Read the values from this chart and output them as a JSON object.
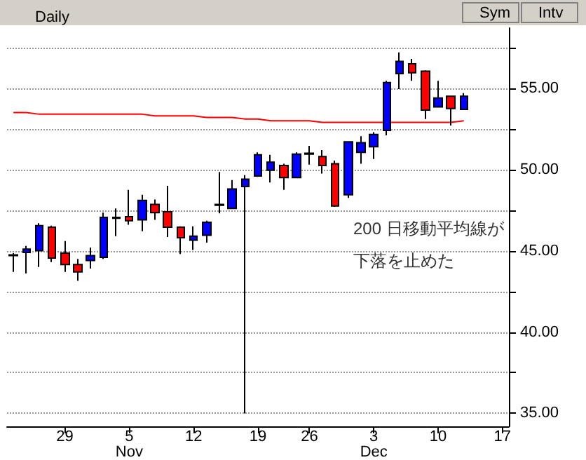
{
  "chart_data": {
    "type": "candlestick",
    "title": "Daily",
    "categories": [
      null,
      null,
      null,
      null,
      "29",
      null,
      null,
      null,
      null,
      "5\nNov",
      null,
      null,
      null,
      null,
      "12",
      null,
      null,
      null,
      null,
      "19",
      null,
      null,
      null,
      "26",
      null,
      null,
      null,
      null,
      "3\nDec",
      null,
      null,
      null,
      null,
      "10",
      null,
      null,
      null,
      null,
      "17"
    ],
    "series": [
      {
        "type": "candlestick",
        "ohlc": [
          [
            44.7,
            44.85,
            43.7,
            44.75
          ],
          [
            44.9,
            45.3,
            43.6,
            45.1
          ],
          [
            45.0,
            46.7,
            44.0,
            46.55
          ],
          [
            46.45,
            46.55,
            44.3,
            44.55
          ],
          [
            44.85,
            45.6,
            43.7,
            44.15
          ],
          [
            44.15,
            44.5,
            43.15,
            43.7
          ],
          [
            44.4,
            45.2,
            43.9,
            44.7
          ],
          [
            44.6,
            47.35,
            44.5,
            47.05
          ],
          [
            47.0,
            47.6,
            45.9,
            47.05
          ],
          [
            47.1,
            48.75,
            46.6,
            46.85
          ],
          [
            46.9,
            48.45,
            46.2,
            48.1
          ],
          [
            47.85,
            48.15,
            46.9,
            47.35
          ],
          [
            47.4,
            49.0,
            45.85,
            46.45
          ],
          [
            46.45,
            46.5,
            44.8,
            45.8
          ],
          [
            45.65,
            46.5,
            45.05,
            45.9
          ],
          [
            45.95,
            46.85,
            45.5,
            46.75
          ],
          [
            47.8,
            49.85,
            47.3,
            47.85
          ],
          [
            47.6,
            49.35,
            47.6,
            48.8
          ],
          [
            48.95,
            49.65,
            35.0,
            49.4
          ],
          [
            49.6,
            51.05,
            49.55,
            50.9
          ],
          [
            49.95,
            50.9,
            49.2,
            50.45
          ],
          [
            50.25,
            50.35,
            48.75,
            49.5
          ],
          [
            49.5,
            51.05,
            49.5,
            50.95
          ],
          [
            50.95,
            51.45,
            50.3,
            51.0
          ],
          [
            50.8,
            51.2,
            49.75,
            50.25
          ],
          [
            50.35,
            50.55,
            47.7,
            47.75
          ],
          [
            48.45,
            51.75,
            48.25,
            51.7
          ],
          [
            51.05,
            52.05,
            50.35,
            51.65
          ],
          [
            51.4,
            52.3,
            50.65,
            52.15
          ],
          [
            52.4,
            55.45,
            52.1,
            55.35
          ],
          [
            55.9,
            57.2,
            54.95,
            56.65
          ],
          [
            56.5,
            56.8,
            55.45,
            55.95
          ],
          [
            56.05,
            56.1,
            53.1,
            53.65
          ],
          [
            53.85,
            55.45,
            53.85,
            54.4
          ],
          [
            54.5,
            54.55,
            52.7,
            53.75
          ],
          [
            53.7,
            54.7,
            53.7,
            54.5
          ],
          null,
          null,
          null
        ],
        "colors": [
          "#000000",
          "#0000ff",
          "#0000ff",
          "#ff0000",
          "#ff0000",
          "#ff0000",
          "#0000ff",
          "#0000ff",
          "#000000",
          "#ff0000",
          "#0000ff",
          "#ff0000",
          "#ff0000",
          "#ff0000",
          "#0000ff",
          "#0000ff",
          "#000000",
          "#0000ff",
          "#0000ff",
          "#0000ff",
          "#0000ff",
          "#ff0000",
          "#0000ff",
          "#000000",
          "#ff0000",
          "#ff0000",
          "#0000ff",
          "#0000ff",
          "#0000ff",
          "#0000ff",
          "#0000ff",
          "#ff0000",
          "#ff0000",
          "#0000ff",
          "#ff0000",
          "#0000ff",
          null,
          null,
          null
        ]
      },
      {
        "type": "line",
        "color": "#ff0000",
        "values": [
          53.5,
          53.5,
          53.4,
          53.4,
          53.4,
          53.4,
          53.4,
          53.4,
          53.4,
          53.4,
          53.4,
          53.3,
          53.3,
          53.3,
          53.3,
          53.2,
          53.2,
          53.2,
          53.1,
          53.1,
          53.0,
          53.0,
          53.0,
          53.0,
          52.9,
          52.9,
          52.9,
          52.9,
          52.9,
          52.9,
          52.9,
          52.9,
          52.9,
          52.9,
          52.9,
          53.0,
          null,
          null,
          null
        ]
      }
    ],
    "ylim": [
      34.2,
      58.7
    ],
    "yticks": [
      {
        "value": 35,
        "label": "35.00"
      },
      {
        "value": 37.5,
        "label": null
      },
      {
        "value": 40,
        "label": "40.00"
      },
      {
        "value": 42.5,
        "label": null
      },
      {
        "value": 45,
        "label": "45.00"
      },
      {
        "value": 47.5,
        "label": null
      },
      {
        "value": 50,
        "label": "50.00"
      },
      {
        "value": 52.5,
        "label": null
      },
      {
        "value": 55,
        "label": "55.00"
      },
      {
        "value": 57.5,
        "label": null
      }
    ],
    "grid": "y",
    "marker": "none",
    "line_style": "solid",
    "annotations": [
      "Sym",
      "Intv",
      "200 日移動平均線が",
      "下落を止めた"
    ]
  }
}
